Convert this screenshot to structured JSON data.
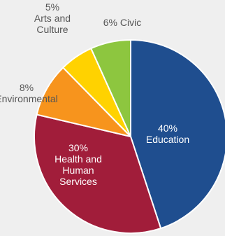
{
  "chart_data": {
    "type": "pie",
    "title": "",
    "start_angle_deg": 0,
    "direction": "clockwise",
    "slices": [
      {
        "key": "education",
        "value": 40,
        "lines": [
          "40%",
          "Education"
        ],
        "color": "#1f4e8f",
        "text_color": "#ffffff"
      },
      {
        "key": "health",
        "value": 30,
        "lines": [
          "30%",
          "Health and",
          "Human",
          "Services"
        ],
        "color": "#a11d3a",
        "text_color": "#ffffff"
      },
      {
        "key": "environmental",
        "value": 8,
        "lines": [
          "8%",
          "Environmental"
        ],
        "color": "#f7941d",
        "text_color": "#555555"
      },
      {
        "key": "arts",
        "value": 5,
        "lines": [
          "5%",
          "Arts and",
          "Culture"
        ],
        "color": "#ffd200",
        "text_color": "#555555"
      },
      {
        "key": "civic",
        "value": 6,
        "lines": [
          "6% Civic"
        ],
        "color": "#8dc63f",
        "text_color": "#555555"
      }
    ]
  }
}
